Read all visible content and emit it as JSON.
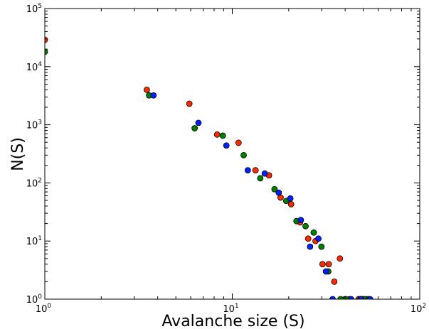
{
  "chart_data": {
    "type": "scatter",
    "title": "",
    "xlabel": "Avalanche size (S)",
    "ylabel": "N(S)",
    "xscale": "log",
    "yscale": "log",
    "xlim": [
      1,
      100
    ],
    "ylim": [
      1,
      100000
    ],
    "grid": false,
    "x_ticks": [
      {
        "base": "10",
        "exp": "0"
      },
      {
        "base": "10",
        "exp": "1"
      },
      {
        "base": "10",
        "exp": "2"
      }
    ],
    "y_ticks": [
      {
        "base": "10",
        "exp": "0"
      },
      {
        "base": "10",
        "exp": "1"
      },
      {
        "base": "10",
        "exp": "2"
      },
      {
        "base": "10",
        "exp": "3"
      },
      {
        "base": "10",
        "exp": "4"
      },
      {
        "base": "10",
        "exp": "5"
      }
    ],
    "series": [
      {
        "color": "#ff2a00",
        "points": [
          [
            1.0,
            29000
          ],
          [
            3.5,
            4000
          ],
          [
            5.9,
            2300
          ],
          [
            8.3,
            680
          ],
          [
            10.8,
            490
          ],
          [
            13.3,
            165
          ],
          [
            15.7,
            135
          ],
          [
            18.1,
            56
          ],
          [
            20.6,
            43
          ],
          [
            23.0,
            21
          ],
          [
            25.4,
            11
          ],
          [
            27.8,
            10
          ],
          [
            30.3,
            4
          ],
          [
            32.7,
            4
          ],
          [
            35.0,
            2
          ],
          [
            37.5,
            5
          ],
          [
            39.9,
            1
          ],
          [
            42.3,
            1
          ],
          [
            47.2,
            1
          ],
          [
            49.6,
            1
          ],
          [
            52.0,
            1
          ]
        ]
      },
      {
        "color": "#008000",
        "points": [
          [
            1.0,
            18000
          ],
          [
            3.6,
            3200
          ],
          [
            6.3,
            870
          ],
          [
            8.9,
            650
          ],
          [
            11.5,
            300
          ],
          [
            14.1,
            120
          ],
          [
            16.8,
            78
          ],
          [
            19.4,
            49
          ],
          [
            22.0,
            22
          ],
          [
            24.6,
            18
          ],
          [
            27.2,
            14
          ],
          [
            29.9,
            8
          ],
          [
            32.5,
            3
          ],
          [
            37.8,
            1
          ],
          [
            40.4,
            1
          ],
          [
            48.2,
            1
          ],
          [
            50.8,
            1
          ],
          [
            53.5,
            1
          ]
        ]
      },
      {
        "color": "#0022ff",
        "points": [
          [
            3.8,
            3200
          ],
          [
            6.6,
            1080
          ],
          [
            9.3,
            440
          ],
          [
            12.1,
            165
          ],
          [
            14.9,
            145
          ],
          [
            17.7,
            68
          ],
          [
            20.4,
            54
          ],
          [
            23.2,
            23
          ],
          [
            26.0,
            8
          ],
          [
            28.8,
            11
          ],
          [
            31.6,
            3
          ],
          [
            34.3,
            1
          ],
          [
            43.0,
            1
          ],
          [
            48.6,
            1
          ],
          [
            54.3,
            1
          ]
        ]
      }
    ]
  }
}
